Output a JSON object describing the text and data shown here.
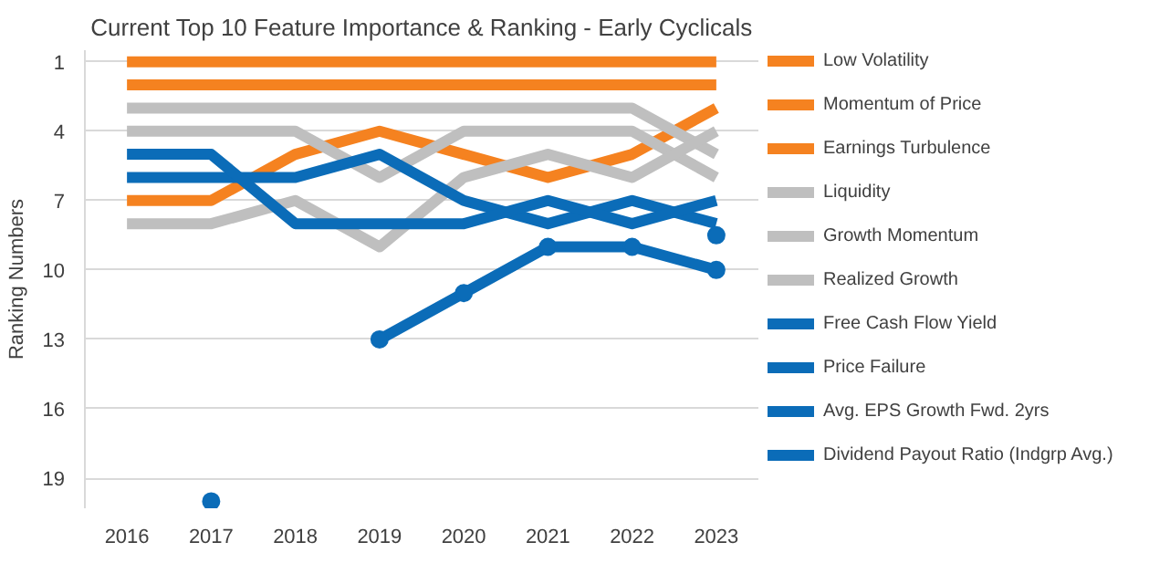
{
  "chart_data": {
    "type": "line",
    "title": "Current Top 10 Feature Importance & Ranking - Early Cyclicals",
    "ylabel": "Ranking Numbers",
    "categories": [
      "2016",
      "2017",
      "2018",
      "2019",
      "2020",
      "2021",
      "2022",
      "2023"
    ],
    "ylim": [
      20.3,
      0.5
    ],
    "yticks": [
      1,
      4,
      7,
      10,
      13,
      16,
      19
    ],
    "grid": "y",
    "legend": "right",
    "marker": "none",
    "line_style": "solid",
    "series": [
      {
        "name": "Low Volatility",
        "color": "#f58220",
        "values": [
          1,
          1,
          1,
          1,
          1,
          1,
          1,
          1
        ]
      },
      {
        "name": "Momentum of Price",
        "color": "#f58220",
        "values": [
          2,
          2,
          2,
          2,
          2,
          2,
          2,
          2
        ]
      },
      {
        "name": "Earnings Turbulence",
        "color": "#f58220",
        "values": [
          7,
          7,
          5,
          4,
          5,
          6,
          5,
          3
        ]
      },
      {
        "name": "Liquidity",
        "color": "#bfbfbf",
        "values": [
          3,
          3,
          3,
          3,
          3,
          3,
          3,
          5
        ]
      },
      {
        "name": "Growth Momentum",
        "color": "#bfbfbf",
        "values": [
          4,
          4,
          4,
          6,
          4,
          4,
          4,
          6
        ]
      },
      {
        "name": "Realized Growth",
        "color": "#bfbfbf",
        "values": [
          8,
          8,
          7,
          9,
          6,
          5,
          6,
          4
        ]
      },
      {
        "name": "Free Cash Flow Yield",
        "color": "#0b6cb8",
        "values": [
          6,
          6,
          6,
          5,
          7,
          8,
          7,
          8
        ]
      },
      {
        "name": "Price Failure",
        "color": "#0b6cb8",
        "values": [
          5,
          5,
          8,
          8,
          8,
          7,
          8,
          7
        ]
      },
      {
        "name": "Avg. EPS Growth Fwd. 2yrs",
        "color": "#0b6cb8",
        "marker": "circle",
        "values": [
          null,
          20,
          null,
          13,
          11,
          9,
          9,
          10
        ]
      },
      {
        "name": "Dividend Payout Ratio (Indgrp Avg.)",
        "color": "#0b6cb8",
        "marker": "circle",
        "values": [
          null,
          null,
          null,
          null,
          null,
          null,
          null,
          8.5
        ]
      }
    ]
  }
}
